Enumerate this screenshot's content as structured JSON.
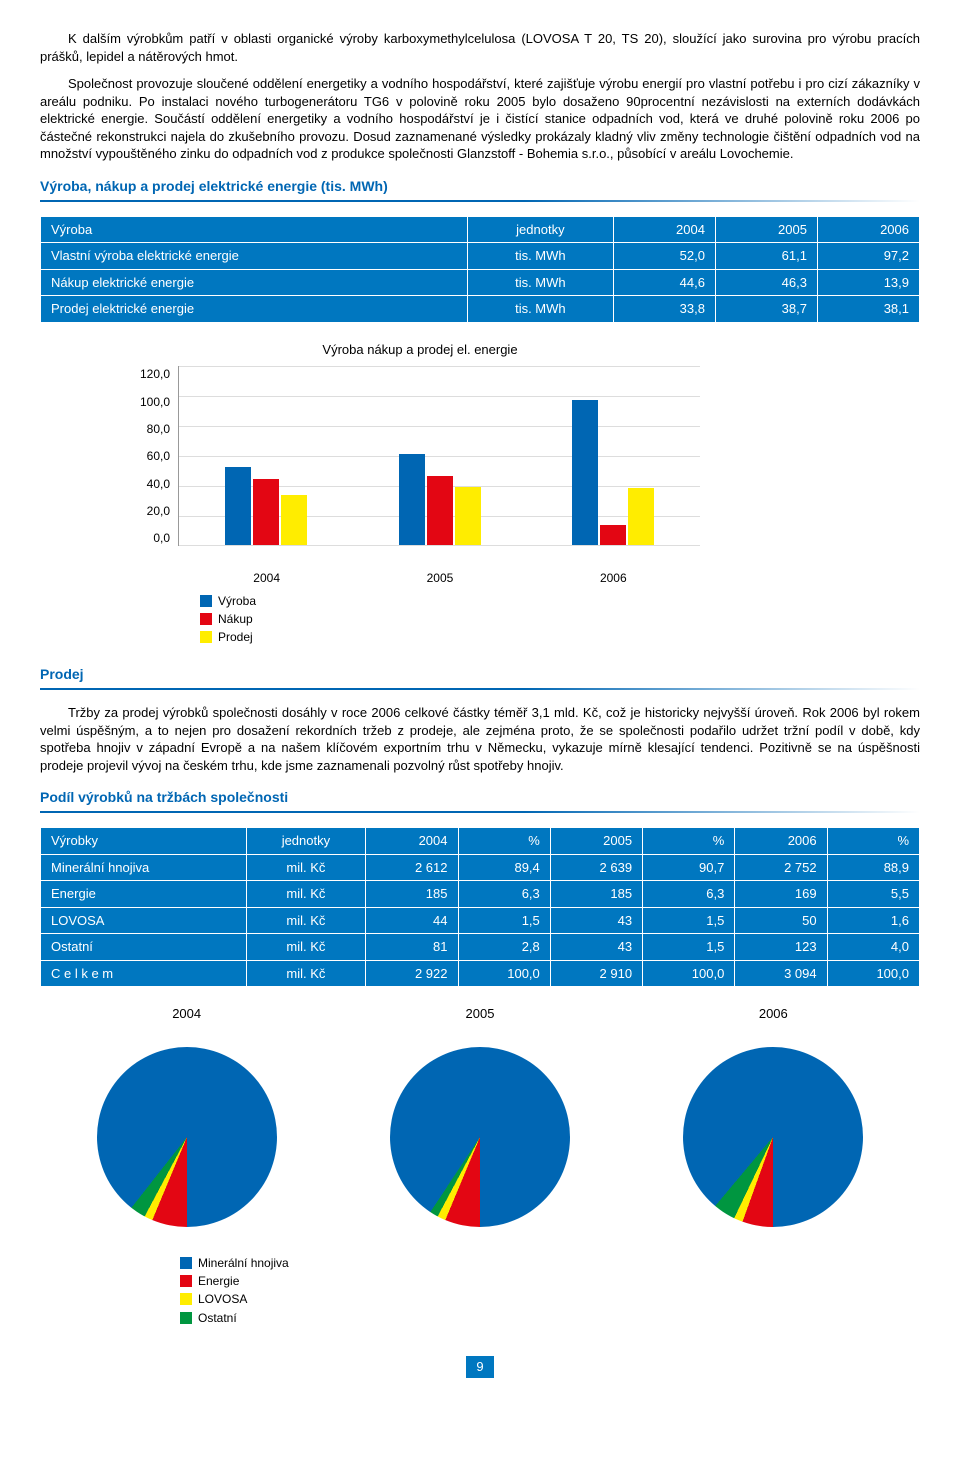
{
  "paragraphs": {
    "p1": "K dalším výrobkům patří v oblasti organické výroby karboxymethylcelulosa (LOVOSA T 20, TS 20), sloužící jako surovina pro výrobu pracích prášků, lepidel a nátěrových hmot.",
    "p2": "Společnost provozuje sloučené oddělení energetiky a vodního hospodářství, které zajišťuje výrobu energií pro vlastní potřebu i pro cizí zákazníky v areálu podniku. Po instalaci nového turbogenerátoru TG6 v polovině roku 2005 bylo dosaženo 90procentní nezávislosti na externích dodávkách elektrické energie. Součástí oddělení energetiky a vodního hospodářství je i čistící stanice odpadních vod, která ve druhé polovině roku 2006 po částečné rekonstrukci najela do zkušebního provozu. Dosud zaznamenané výsledky prokázaly kladný vliv změny technologie čištění odpadních vod na množství vypouštěného zinku do odpadních vod z produkce společnosti Glanzstoff - Bohemia s.r.o., působící v areálu Lovochemie.",
    "p3": "Tržby za prodej výrobků společnosti dosáhly v roce 2006 celkové částky téměř 3,1 mld. Kč, což je historicky nejvyšší úroveň. Rok 2006 byl rokem velmi úspěšným, a to nejen pro dosažení rekordních tržeb z prodeje, ale zejména proto, že se společnosti podařilo udržet tržní podíl v době, kdy spotřeba hnojiv v západní Evropě a na našem klíčovém exportním trhu v Německu, vykazuje mírně klesající tendenci. Pozitivně se na úspěšnosti prodeje projevil vývoj na českém trhu, kde jsme zaznamenali pozvolný růst spotřeby hnojiv."
  },
  "section1_title": "Výroba, nákup a prodej elektrické energie (tis. MWh)",
  "section2_title": "Prodej",
  "section3_title": "Podíl výrobků na tržbách společnosti",
  "table1": {
    "headers": [
      "Výroba",
      "jednotky",
      "2004",
      "2005",
      "2006"
    ],
    "rows": [
      [
        "Vlastní výroba elektrické energie",
        "tis. MWh",
        "52,0",
        "61,1",
        "97,2"
      ],
      [
        "Nákup elektrické energie",
        "tis. MWh",
        "44,6",
        "46,3",
        "13,9"
      ],
      [
        "Prodej elektrické energie",
        "tis. MWh",
        "33,8",
        "38,7",
        "38,1"
      ]
    ]
  },
  "bar_chart": {
    "title": "Výroba nákup a prodej el. energie",
    "y_ticks": [
      "120,0",
      "100,0",
      "80,0",
      "60,0",
      "40,0",
      "20,0",
      "0,0"
    ],
    "y_max": 120,
    "categories": [
      "2004",
      "2005",
      "2006"
    ],
    "series": [
      {
        "name": "Výroba",
        "color": "#0066b3",
        "values": [
          52.0,
          61.1,
          97.2
        ]
      },
      {
        "name": "Nákup",
        "color": "#e30613",
        "values": [
          44.6,
          46.3,
          13.9
        ]
      },
      {
        "name": "Prodej",
        "color": "#ffed00",
        "values": [
          33.8,
          38.7,
          38.1
        ]
      }
    ]
  },
  "table2": {
    "headers": [
      "Výrobky",
      "jednotky",
      "2004",
      "%",
      "2005",
      "%",
      "2006",
      "%"
    ],
    "rows": [
      [
        "Minerální hnojiva",
        "mil. Kč",
        "2 612",
        "89,4",
        "2 639",
        "90,7",
        "2 752",
        "88,9"
      ],
      [
        "Energie",
        "mil. Kč",
        "185",
        "6,3",
        "185",
        "6,3",
        "169",
        "5,5"
      ],
      [
        "LOVOSA",
        "mil. Kč",
        "44",
        "1,5",
        "43",
        "1,5",
        "50",
        "1,6"
      ],
      [
        "Ostatní",
        "mil. Kč",
        "81",
        "2,8",
        "43",
        "1,5",
        "123",
        "4,0"
      ],
      [
        "C e l k e m",
        "mil. Kč",
        "2 922",
        "100,0",
        "2 910",
        "100,0",
        "3 094",
        "100,0"
      ]
    ]
  },
  "pies": {
    "years": [
      "2004",
      "2005",
      "2006"
    ],
    "colors": {
      "Minerální hnojiva": "#0066b3",
      "Energie": "#e30613",
      "LOVOSA": "#ffed00",
      "Ostatní": "#009640"
    },
    "legend": [
      "Minerální hnojiva",
      "Energie",
      "LOVOSA",
      "Ostatní"
    ],
    "data": [
      {
        "Minerální hnojiva": 89.4,
        "Energie": 6.3,
        "LOVOSA": 1.5,
        "Ostatní": 2.8
      },
      {
        "Minerální hnojiva": 90.7,
        "Energie": 6.3,
        "LOVOSA": 1.5,
        "Ostatní": 1.5
      },
      {
        "Minerální hnojiva": 88.9,
        "Energie": 5.5,
        "LOVOSA": 1.6,
        "Ostatní": 4.0
      }
    ]
  },
  "page_number": "9"
}
